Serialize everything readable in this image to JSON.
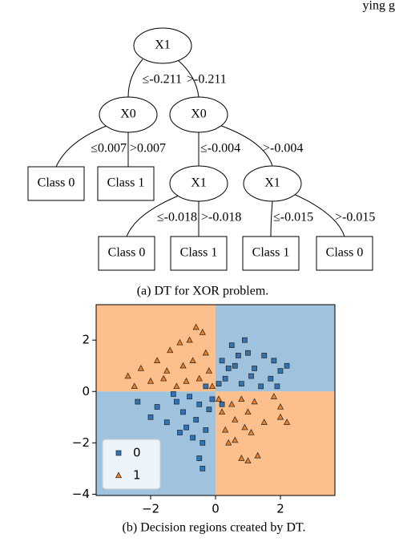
{
  "header_fragment": "ying g",
  "tree": {
    "nodes": [
      {
        "label": "X1"
      },
      {
        "label": "X0"
      },
      {
        "label": "X0"
      },
      {
        "label": "Class 0"
      },
      {
        "label": "Class 1"
      },
      {
        "label": "X1"
      },
      {
        "label": "X1"
      },
      {
        "label": "Class 0"
      },
      {
        "label": "Class 1"
      },
      {
        "label": "Class 1"
      },
      {
        "label": "Class 0"
      }
    ],
    "edges": [
      {
        "label": "≤-0.211"
      },
      {
        "label": ">-0.211"
      },
      {
        "label": "≤0.007"
      },
      {
        "label": ">0.007"
      },
      {
        "label": "≤-0.004"
      },
      {
        "label": ">-0.004"
      },
      {
        "label": "≤-0.018"
      },
      {
        "label": ">-0.018"
      },
      {
        "label": "≤-0.015"
      },
      {
        "label": ">-0.015"
      }
    ]
  },
  "captions": [
    "(a) DT for XOR problem.",
    "(b) Decision regions created by DT."
  ],
  "chart_data": {
    "type": "scatter",
    "xlim": [
      -3.68,
      3.68
    ],
    "ylim": [
      -4.05,
      3.38
    ],
    "xticks": [
      {
        "value": -2,
        "label": "−2"
      },
      0,
      2
    ],
    "yticks": [
      {
        "value": -4,
        "label": "−4"
      },
      {
        "value": -2,
        "label": "−2"
      },
      0,
      2
    ],
    "regions": [
      {
        "xrange": [
          -3.68,
          0
        ],
        "yrange": [
          0,
          3.38
        ],
        "color": "#fdc08c"
      },
      {
        "xrange": [
          0,
          3.68
        ],
        "yrange": [
          0,
          3.38
        ],
        "color": "#9fc3df"
      },
      {
        "xrange": [
          -3.68,
          0
        ],
        "yrange": [
          -4.05,
          0
        ],
        "color": "#9fc3df"
      },
      {
        "xrange": [
          0,
          3.68
        ],
        "yrange": [
          -4.05,
          0
        ],
        "color": "#fdc08c"
      }
    ],
    "legend": "lower left",
    "series": [
      {
        "name": "0",
        "color": "#3274b3",
        "marker": "square",
        "x": [
          0.3,
          0.6,
          1.0,
          1.5,
          2.0,
          0.8,
          1.2,
          0.2,
          0.5,
          1.4,
          1.8,
          0.9,
          1.7,
          2.2,
          0.1,
          1.1,
          0.4,
          -0.3,
          0.7,
          1.9,
          -0.5,
          -1.0,
          -1.5,
          -0.3,
          -0.8,
          -1.2,
          -2.0,
          -0.6,
          -1.8,
          -0.2,
          -1.1,
          -0.4,
          -0.9,
          -2.4,
          -0.1,
          -1.3,
          -0.5,
          -0.4,
          0.2,
          -0.7
        ],
        "y": [
          0.5,
          1.0,
          1.5,
          1.4,
          0.8,
          0.3,
          0.9,
          1.2,
          1.8,
          0.2,
          1.2,
          2.0,
          0.5,
          1.0,
          0.3,
          0.6,
          0.9,
          0.2,
          1.4,
          0.2,
          -0.5,
          -0.8,
          -1.2,
          -1.5,
          -0.2,
          -0.4,
          -1.0,
          -1.1,
          -0.6,
          -0.7,
          -1.6,
          -2.0,
          -1.4,
          -0.4,
          -0.3,
          -0.1,
          -2.6,
          -3.0,
          -0.5,
          -1.8
        ]
      },
      {
        "name": "1",
        "color": "#e8802a",
        "marker": "triangle",
        "x": [
          -0.5,
          -1.0,
          -1.5,
          -2.0,
          -2.7,
          -0.8,
          -0.3,
          -1.2,
          -0.6,
          -1.8,
          -0.2,
          -2.3,
          -1.4,
          -0.9,
          -0.4,
          -2.5,
          -1.1,
          -0.1,
          -1.6,
          -0.7,
          0.5,
          1.0,
          1.5,
          0.3,
          0.8,
          1.2,
          2.0,
          0.6,
          1.8,
          0.2,
          1.1,
          0.4,
          0.9,
          2.2,
          0.1,
          1.3,
          0.8,
          1.0,
          2.0,
          0.6
        ],
        "y": [
          0.5,
          1.0,
          0.8,
          0.4,
          0.6,
          2.0,
          1.5,
          0.2,
          2.5,
          1.2,
          0.8,
          0.9,
          1.6,
          0.4,
          2.3,
          0.2,
          1.9,
          0.2,
          0.5,
          1.2,
          -0.5,
          -0.8,
          -1.2,
          -1.5,
          -0.3,
          -0.4,
          -1.0,
          -1.1,
          -0.2,
          -0.8,
          -1.6,
          -2.0,
          -1.4,
          -1.2,
          -0.3,
          -2.5,
          -2.6,
          -2.7,
          -0.6,
          -1.9
        ]
      }
    ]
  }
}
